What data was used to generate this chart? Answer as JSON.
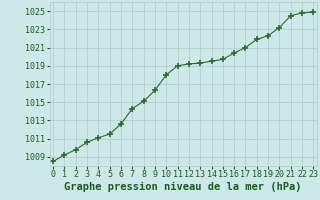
{
  "x": [
    0,
    1,
    2,
    3,
    4,
    5,
    6,
    7,
    8,
    9,
    10,
    11,
    12,
    13,
    14,
    15,
    16,
    17,
    18,
    19,
    20,
    21,
    22,
    23
  ],
  "y": [
    1008.5,
    1009.2,
    1009.8,
    1010.6,
    1011.1,
    1011.5,
    1012.6,
    1014.3,
    1015.1,
    1016.3,
    1018.0,
    1019.0,
    1019.2,
    1019.3,
    1019.5,
    1019.7,
    1020.4,
    1021.0,
    1021.9,
    1022.3,
    1023.2,
    1024.5,
    1024.8,
    1024.9
  ],
  "yticks": [
    1009,
    1011,
    1013,
    1015,
    1017,
    1019,
    1021,
    1023,
    1025
  ],
  "xticks": [
    0,
    1,
    2,
    3,
    4,
    5,
    6,
    7,
    8,
    9,
    10,
    11,
    12,
    13,
    14,
    15,
    16,
    17,
    18,
    19,
    20,
    21,
    22,
    23
  ],
  "ylim": [
    1008.0,
    1026.0
  ],
  "xlim": [
    -0.3,
    23.3
  ],
  "line_color": "#2d6a2d",
  "marker": "+",
  "markersize": 4,
  "markeredgewidth": 1.2,
  "bg_plot": "#cce8e8",
  "bg_fig": "#cce8e8",
  "grid_color": "#b0c8c8",
  "xlabel": "Graphe pression niveau de la mer (hPa)",
  "xlabel_color": "#1a5c1a",
  "tick_color": "#1a5c1a",
  "tick_fontsize": 6,
  "xlabel_fontsize": 7.5
}
